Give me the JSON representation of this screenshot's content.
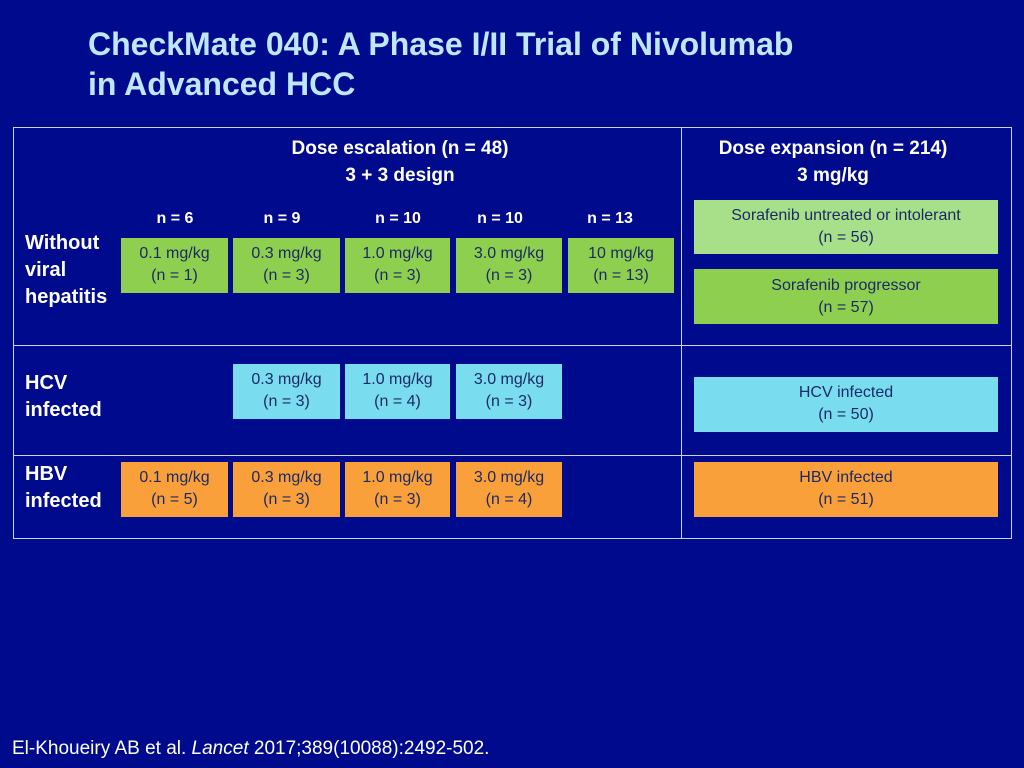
{
  "title": {
    "line1": "CheckMate 040: A Phase I/II Trial of Nivolumab",
    "line2": "in Advanced HCC"
  },
  "escalation": {
    "header1": "Dose escalation (n = 48)",
    "header2": "3 + 3 design",
    "cohort_n": [
      "n = 6",
      "n = 9",
      "n = 10",
      "n = 10",
      "n = 13"
    ]
  },
  "expansion": {
    "header1": "Dose expansion (n = 214)",
    "header2": "3 mg/kg"
  },
  "rows": {
    "without_viral": {
      "label": [
        "Without",
        "viral",
        "hepatitis"
      ],
      "doses": [
        {
          "dose": "0.1 mg/kg",
          "n": "(n = 1)"
        },
        {
          "dose": "0.3 mg/kg",
          "n": "(n = 3)"
        },
        {
          "dose": "1.0 mg/kg",
          "n": "(n = 3)"
        },
        {
          "dose": "3.0 mg/kg",
          "n": "(n = 3)"
        },
        {
          "dose": "10 mg/kg",
          "n": "(n = 13)"
        }
      ],
      "expansion": [
        {
          "label": "Sorafenib untreated or intolerant",
          "n": "(n = 56)"
        },
        {
          "label": "Sorafenib progressor",
          "n": "(n = 57)"
        }
      ]
    },
    "hcv": {
      "label": [
        "HCV",
        "infected"
      ],
      "doses": [
        {
          "dose": "0.3 mg/kg",
          "n": "(n = 3)"
        },
        {
          "dose": "1.0 mg/kg",
          "n": "(n = 4)"
        },
        {
          "dose": "3.0 mg/kg",
          "n": "(n = 3)"
        }
      ],
      "expansion": {
        "label": "HCV infected",
        "n": "(n = 50)"
      }
    },
    "hbv": {
      "label": [
        "HBV",
        "infected"
      ],
      "doses": [
        {
          "dose": "0.1 mg/kg",
          "n": "(n = 5)"
        },
        {
          "dose": "0.3 mg/kg",
          "n": "(n = 3)"
        },
        {
          "dose": "1.0 mg/kg",
          "n": "(n = 3)"
        },
        {
          "dose": "3.0 mg/kg",
          "n": "(n = 4)"
        }
      ],
      "expansion": {
        "label": "HBV infected",
        "n": "(n = 51)"
      }
    }
  },
  "citation": {
    "authors": "El-Khoueiry AB et al.",
    "journal": "Lancet",
    "details": "2017;389(10088):2492-502."
  },
  "colors": {
    "background": "#000a8c",
    "title": "#bfe7ff",
    "green": "#8fcf4f",
    "light_green": "#a8e08a",
    "cyan": "#79dcef",
    "orange": "#f9a03a"
  }
}
